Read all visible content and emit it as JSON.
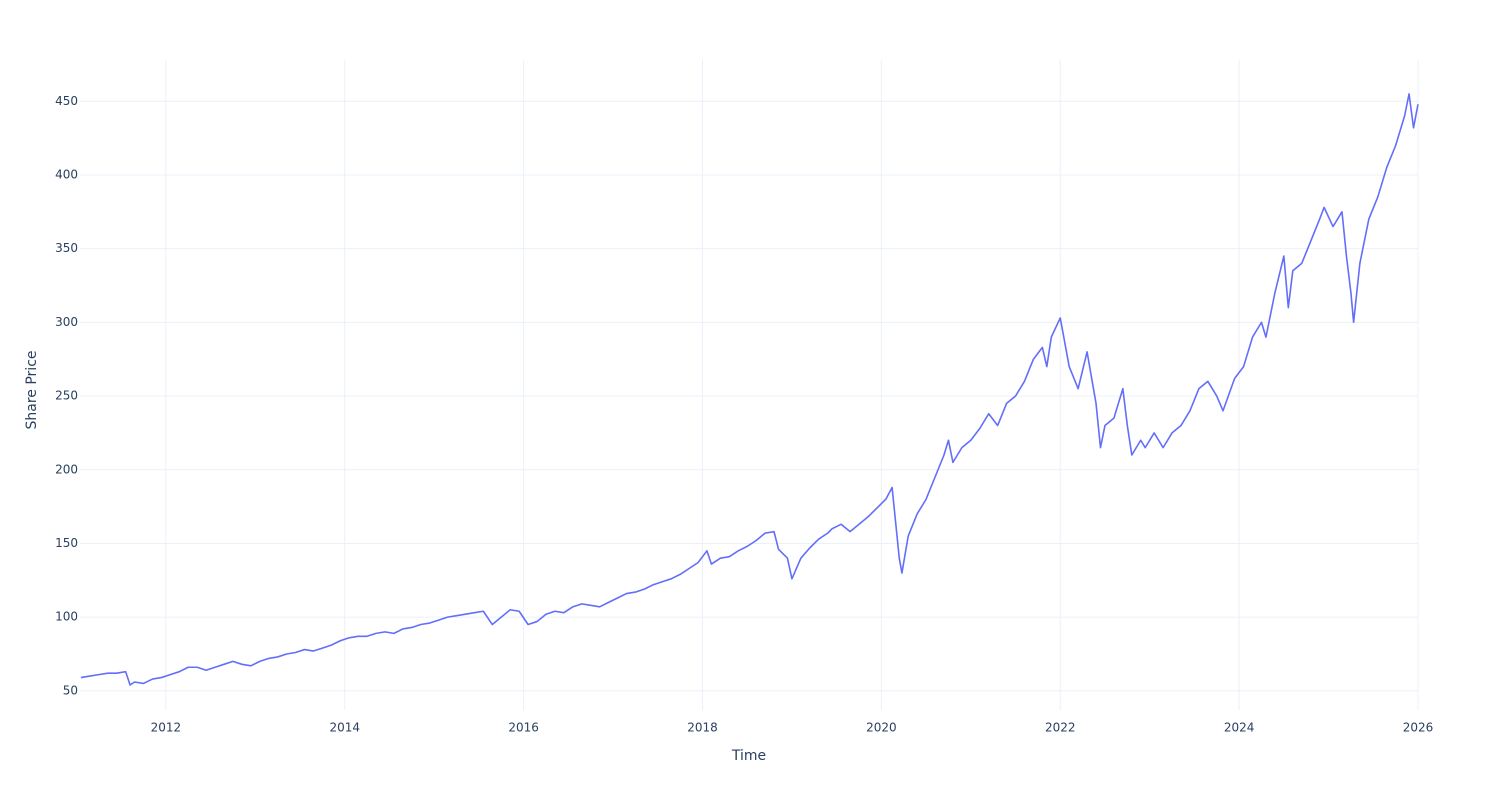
{
  "chart_data": {
    "type": "line",
    "x_label": "Time",
    "y_label": "Share Price",
    "xlim": [
      2011.04,
      2026.0
    ],
    "xticks": [
      2012,
      2014,
      2016,
      2018,
      2020,
      2022,
      2024,
      2026
    ],
    "ylim": [
      37,
      478
    ],
    "yticks": [
      50,
      100,
      150,
      200,
      250,
      300,
      350,
      400,
      450
    ],
    "grid": true,
    "series": [
      {
        "color": "#636efa",
        "x": [
          2011.05,
          2011.15,
          2011.25,
          2011.35,
          2011.45,
          2011.55,
          2011.6,
          2011.65,
          2011.75,
          2011.85,
          2011.95,
          2012.05,
          2012.15,
          2012.25,
          2012.35,
          2012.45,
          2012.55,
          2012.65,
          2012.75,
          2012.85,
          2012.95,
          2013.05,
          2013.15,
          2013.25,
          2013.35,
          2013.45,
          2013.55,
          2013.65,
          2013.75,
          2013.85,
          2013.95,
          2014.05,
          2014.15,
          2014.25,
          2014.35,
          2014.45,
          2014.55,
          2014.65,
          2014.75,
          2014.85,
          2014.95,
          2015.05,
          2015.15,
          2015.25,
          2015.35,
          2015.45,
          2015.55,
          2015.65,
          2015.75,
          2015.85,
          2015.95,
          2016.05,
          2016.15,
          2016.25,
          2016.35,
          2016.45,
          2016.55,
          2016.65,
          2016.75,
          2016.85,
          2016.95,
          2017.05,
          2017.15,
          2017.25,
          2017.35,
          2017.45,
          2017.55,
          2017.65,
          2017.75,
          2017.85,
          2017.95,
          2018.05,
          2018.1,
          2018.2,
          2018.3,
          2018.4,
          2018.5,
          2018.6,
          2018.7,
          2018.8,
          2018.85,
          2018.95,
          2019.0,
          2019.1,
          2019.2,
          2019.3,
          2019.4,
          2019.45,
          2019.55,
          2019.65,
          2019.75,
          2019.85,
          2019.95,
          2020.05,
          2020.12,
          2020.2,
          2020.23,
          2020.3,
          2020.4,
          2020.5,
          2020.6,
          2020.7,
          2020.75,
          2020.8,
          2020.9,
          2021.0,
          2021.1,
          2021.2,
          2021.3,
          2021.4,
          2021.5,
          2021.6,
          2021.7,
          2021.8,
          2021.85,
          2021.9,
          2022.0,
          2022.1,
          2022.2,
          2022.3,
          2022.4,
          2022.45,
          2022.5,
          2022.6,
          2022.7,
          2022.75,
          2022.8,
          2022.9,
          2022.95,
          2023.05,
          2023.15,
          2023.25,
          2023.35,
          2023.45,
          2023.55,
          2023.65,
          2023.75,
          2023.82,
          2023.95,
          2024.05,
          2024.15,
          2024.25,
          2024.3,
          2024.4,
          2024.5,
          2024.55,
          2024.6,
          2024.7,
          2024.8,
          2024.9,
          2024.95,
          2025.05,
          2025.15,
          2025.2,
          2025.25,
          2025.28,
          2025.35,
          2025.45,
          2025.55,
          2025.65,
          2025.75,
          2025.85,
          2025.9,
          2025.95,
          2026.0
        ],
        "values": [
          59,
          60,
          61,
          62,
          62,
          63,
          54,
          56,
          55,
          58,
          59,
          61,
          63,
          66,
          66,
          64,
          66,
          68,
          70,
          68,
          67,
          70,
          72,
          73,
          75,
          76,
          78,
          77,
          79,
          81,
          84,
          86,
          87,
          87,
          89,
          90,
          89,
          92,
          93,
          95,
          96,
          98,
          100,
          101,
          102,
          103,
          104,
          95,
          100,
          105,
          104,
          95,
          97,
          102,
          104,
          103,
          107,
          109,
          108,
          107,
          110,
          113,
          116,
          117,
          119,
          122,
          124,
          126,
          129,
          133,
          137,
          145,
          136,
          140,
          141,
          145,
          148,
          152,
          157,
          158,
          146,
          140,
          126,
          140,
          147,
          153,
          157,
          160,
          163,
          158,
          163,
          168,
          174,
          180,
          188,
          140,
          130,
          155,
          170,
          180,
          195,
          210,
          220,
          205,
          215,
          220,
          228,
          238,
          230,
          245,
          250,
          260,
          275,
          283,
          270,
          290,
          303,
          270,
          255,
          280,
          245,
          215,
          230,
          235,
          255,
          230,
          210,
          220,
          215,
          225,
          215,
          225,
          230,
          240,
          255,
          260,
          250,
          240,
          262,
          270,
          290,
          300,
          290,
          320,
          345,
          310,
          335,
          340,
          355,
          370,
          378,
          365,
          375,
          345,
          320,
          300,
          340,
          370,
          385,
          405,
          420,
          440,
          455,
          432,
          448
        ]
      }
    ]
  }
}
